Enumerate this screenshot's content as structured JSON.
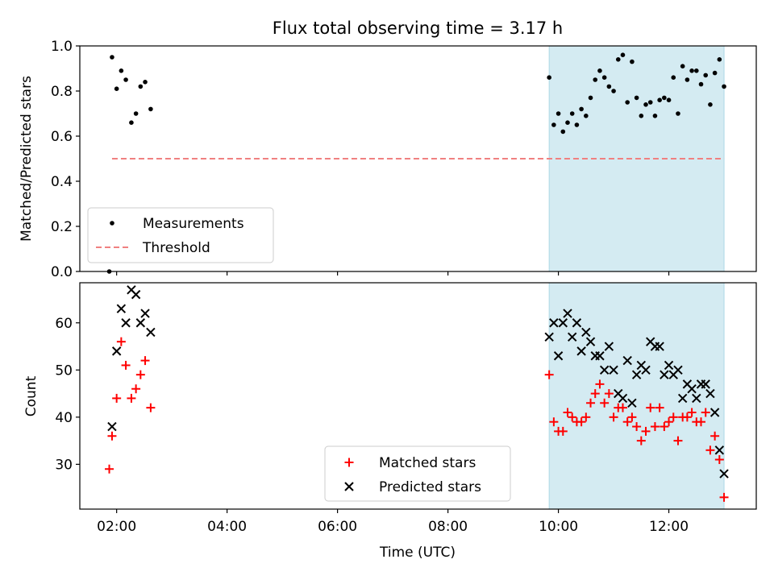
{
  "chart_data": [
    {
      "type": "scatter",
      "title": "Flux total observing time = 3.17 h",
      "ylabel": "Matched/Predicted stars",
      "xlabel": "",
      "xlim": [
        "01:20",
        "13:35"
      ],
      "ylim": [
        0,
        1.0
      ],
      "yticks": [
        "0.0",
        "0.2",
        "0.4",
        "0.6",
        "0.8",
        "1.0"
      ],
      "shaded_region": {
        "from": "09:50",
        "to": "13:00",
        "color": "#add8e6"
      },
      "legend": {
        "placement": "lower-left",
        "entries": [
          "Measurements",
          "Threshold"
        ]
      },
      "series": [
        {
          "name": "Measurements",
          "marker": "dot",
          "color": "#000000",
          "points": [
            [
              "01:52",
              0.0
            ],
            [
              "01:55",
              0.95
            ],
            [
              "02:00",
              0.81
            ],
            [
              "02:05",
              0.89
            ],
            [
              "02:10",
              0.85
            ],
            [
              "02:16",
              0.66
            ],
            [
              "02:21",
              0.7
            ],
            [
              "02:26",
              0.82
            ],
            [
              "02:31",
              0.84
            ],
            [
              "02:37",
              0.72
            ],
            [
              "09:50",
              0.86
            ],
            [
              "09:55",
              0.65
            ],
            [
              "10:00",
              0.7
            ],
            [
              "10:05",
              0.62
            ],
            [
              "10:10",
              0.66
            ],
            [
              "10:15",
              0.7
            ],
            [
              "10:20",
              0.65
            ],
            [
              "10:25",
              0.72
            ],
            [
              "10:30",
              0.69
            ],
            [
              "10:35",
              0.77
            ],
            [
              "10:40",
              0.85
            ],
            [
              "10:45",
              0.89
            ],
            [
              "10:50",
              0.86
            ],
            [
              "10:55",
              0.82
            ],
            [
              "11:00",
              0.8
            ],
            [
              "11:05",
              0.94
            ],
            [
              "11:10",
              0.96
            ],
            [
              "11:15",
              0.75
            ],
            [
              "11:20",
              0.93
            ],
            [
              "11:25",
              0.77
            ],
            [
              "11:30",
              0.69
            ],
            [
              "11:35",
              0.74
            ],
            [
              "11:40",
              0.75
            ],
            [
              "11:45",
              0.69
            ],
            [
              "11:50",
              0.76
            ],
            [
              "11:55",
              0.77
            ],
            [
              "12:00",
              0.76
            ],
            [
              "12:05",
              0.86
            ],
            [
              "12:10",
              0.7
            ],
            [
              "12:15",
              0.91
            ],
            [
              "12:20",
              0.85
            ],
            [
              "12:25",
              0.89
            ],
            [
              "12:30",
              0.89
            ],
            [
              "12:35",
              0.83
            ],
            [
              "12:40",
              0.87
            ],
            [
              "12:45",
              0.74
            ],
            [
              "12:50",
              0.88
            ],
            [
              "12:55",
              0.94
            ],
            [
              "13:00",
              0.82
            ]
          ]
        },
        {
          "name": "Threshold",
          "line": "dashed",
          "color": "#f08080",
          "points": [
            [
              "01:55",
              0.5
            ],
            [
              "13:00",
              0.5
            ]
          ]
        }
      ]
    },
    {
      "type": "scatter",
      "title": "",
      "xlabel": "Time (UTC)",
      "ylabel": "Count",
      "xlim": [
        "01:20",
        "13:35"
      ],
      "ylim": [
        20.5,
        68.5
      ],
      "xticks": [
        "02:00",
        "04:00",
        "06:00",
        "08:00",
        "10:00",
        "12:00"
      ],
      "yticks": [
        "30",
        "40",
        "50",
        "60"
      ],
      "shaded_region": {
        "from": "09:50",
        "to": "13:00",
        "color": "#add8e6"
      },
      "legend": {
        "placement": "lower-center",
        "entries": [
          "Matched stars",
          "Predicted stars"
        ]
      },
      "series": [
        {
          "name": "Matched stars",
          "marker": "plus",
          "color": "#ff0000",
          "points": [
            [
              "01:52",
              29
            ],
            [
              "01:55",
              36
            ],
            [
              "02:00",
              44
            ],
            [
              "02:05",
              56
            ],
            [
              "02:10",
              51
            ],
            [
              "02:16",
              44
            ],
            [
              "02:21",
              46
            ],
            [
              "02:26",
              49
            ],
            [
              "02:31",
              52
            ],
            [
              "02:37",
              42
            ],
            [
              "09:50",
              49
            ],
            [
              "09:55",
              39
            ],
            [
              "10:00",
              37
            ],
            [
              "10:05",
              37
            ],
            [
              "10:10",
              41
            ],
            [
              "10:15",
              40
            ],
            [
              "10:20",
              39
            ],
            [
              "10:25",
              39
            ],
            [
              "10:30",
              40
            ],
            [
              "10:35",
              43
            ],
            [
              "10:40",
              45
            ],
            [
              "10:45",
              47
            ],
            [
              "10:50",
              43
            ],
            [
              "10:55",
              45
            ],
            [
              "11:00",
              40
            ],
            [
              "11:05",
              42
            ],
            [
              "11:10",
              42
            ],
            [
              "11:15",
              39
            ],
            [
              "11:20",
              40
            ],
            [
              "11:25",
              38
            ],
            [
              "11:30",
              35
            ],
            [
              "11:35",
              37
            ],
            [
              "11:40",
              42
            ],
            [
              "11:45",
              38
            ],
            [
              "11:50",
              42
            ],
            [
              "11:55",
              38
            ],
            [
              "12:00",
              39
            ],
            [
              "12:05",
              40
            ],
            [
              "12:10",
              35
            ],
            [
              "12:15",
              40
            ],
            [
              "12:20",
              40
            ],
            [
              "12:25",
              41
            ],
            [
              "12:30",
              39
            ],
            [
              "12:35",
              39
            ],
            [
              "12:40",
              41
            ],
            [
              "12:45",
              33
            ],
            [
              "12:50",
              36
            ],
            [
              "12:55",
              31
            ],
            [
              "13:00",
              23
            ]
          ]
        },
        {
          "name": "Predicted stars",
          "marker": "x",
          "color": "#000000",
          "points": [
            [
              "01:55",
              38
            ],
            [
              "02:00",
              54
            ],
            [
              "02:05",
              63
            ],
            [
              "02:10",
              60
            ],
            [
              "02:16",
              67
            ],
            [
              "02:21",
              66
            ],
            [
              "02:26",
              60
            ],
            [
              "02:31",
              62
            ],
            [
              "02:37",
              58
            ],
            [
              "09:50",
              57
            ],
            [
              "09:55",
              60
            ],
            [
              "10:00",
              53
            ],
            [
              "10:05",
              60
            ],
            [
              "10:10",
              62
            ],
            [
              "10:15",
              57
            ],
            [
              "10:20",
              60
            ],
            [
              "10:25",
              54
            ],
            [
              "10:30",
              58
            ],
            [
              "10:35",
              56
            ],
            [
              "10:40",
              53
            ],
            [
              "10:45",
              53
            ],
            [
              "10:50",
              50
            ],
            [
              "10:55",
              55
            ],
            [
              "11:00",
              50
            ],
            [
              "11:05",
              45
            ],
            [
              "11:10",
              44
            ],
            [
              "11:15",
              52
            ],
            [
              "11:20",
              43
            ],
            [
              "11:25",
              49
            ],
            [
              "11:30",
              51
            ],
            [
              "11:35",
              50
            ],
            [
              "11:40",
              56
            ],
            [
              "11:45",
              55
            ],
            [
              "11:50",
              55
            ],
            [
              "11:55",
              49
            ],
            [
              "12:00",
              51
            ],
            [
              "12:05",
              49
            ],
            [
              "12:10",
              50
            ],
            [
              "12:15",
              44
            ],
            [
              "12:20",
              47
            ],
            [
              "12:25",
              46
            ],
            [
              "12:30",
              44
            ],
            [
              "12:35",
              47
            ],
            [
              "12:40",
              47
            ],
            [
              "12:45",
              45
            ],
            [
              "12:50",
              41
            ],
            [
              "12:55",
              33
            ],
            [
              "13:00",
              28
            ]
          ]
        }
      ]
    }
  ]
}
